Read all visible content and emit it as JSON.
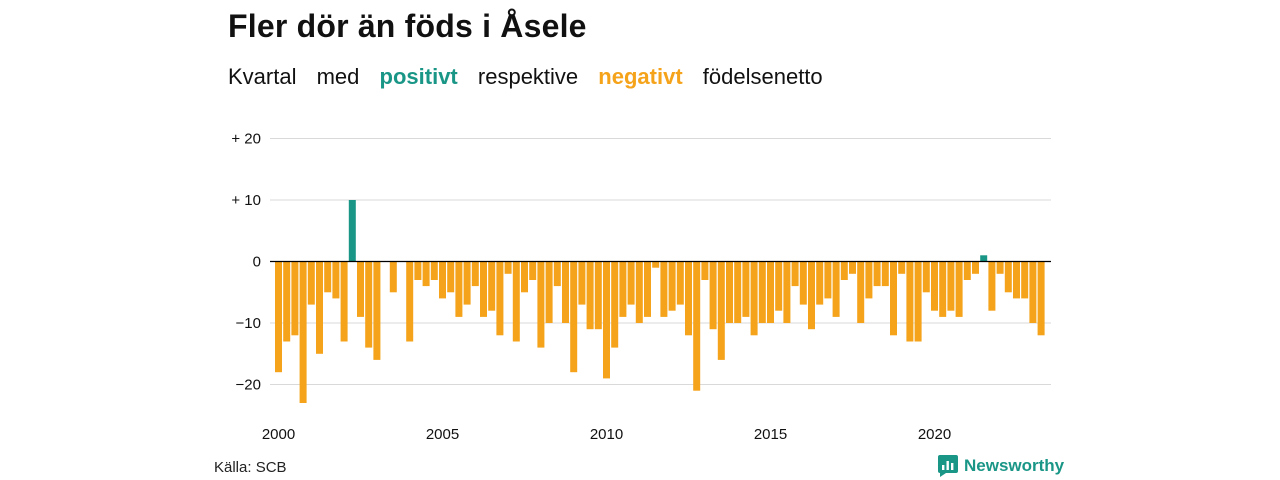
{
  "title": "Fler dör än föds i Åsele",
  "subtitle": {
    "part1": "Kvartal",
    "part2": "med",
    "positive": "positivt",
    "part3": "respektive",
    "negative": "negativt",
    "part4": "födelsenetto"
  },
  "source": "Källa: SCB",
  "brand": "Newsworthy",
  "colors": {
    "positive": "#1a9687",
    "negative": "#f5a31a",
    "grid": "#d9d9d9",
    "zero": "#000000"
  },
  "chart_data": {
    "type": "bar",
    "title": "Fler dör än föds i Åsele",
    "xlabel": "",
    "ylabel": "",
    "ylim": [
      -23,
      20
    ],
    "yticks": [
      20,
      10,
      0,
      -10,
      -20
    ],
    "ytick_labels": [
      "+ 20",
      "+ 10",
      "0",
      "−10",
      "−20"
    ],
    "xticks": [
      "2000",
      "2005",
      "2010",
      "2015",
      "2020"
    ],
    "start": "2000-Q1",
    "values": [
      -18,
      -13,
      -12,
      -23,
      -7,
      -15,
      -5,
      -6,
      -13,
      10,
      -9,
      -14,
      -16,
      0,
      -5,
      0,
      -13,
      -3,
      -4,
      -3,
      -6,
      -5,
      -9,
      -7,
      -4,
      -9,
      -8,
      -12,
      -2,
      -13,
      -5,
      -3,
      -14,
      -10,
      -4,
      -10,
      -18,
      -7,
      -11,
      -11,
      -19,
      -14,
      -9,
      -7,
      -10,
      -9,
      -1,
      -9,
      -8,
      -7,
      -12,
      -21,
      -3,
      -11,
      -16,
      -10,
      -10,
      -9,
      -12,
      -10,
      -10,
      -8,
      -10,
      -4,
      -7,
      -11,
      -7,
      -6,
      -9,
      -3,
      -2,
      -10,
      -6,
      -4,
      -4,
      -12,
      -2,
      -13,
      -13,
      -5,
      -8,
      -9,
      -8,
      -9,
      -3,
      -2,
      1,
      -8,
      -2,
      -5,
      -6,
      -6,
      -10,
      -12
    ]
  }
}
